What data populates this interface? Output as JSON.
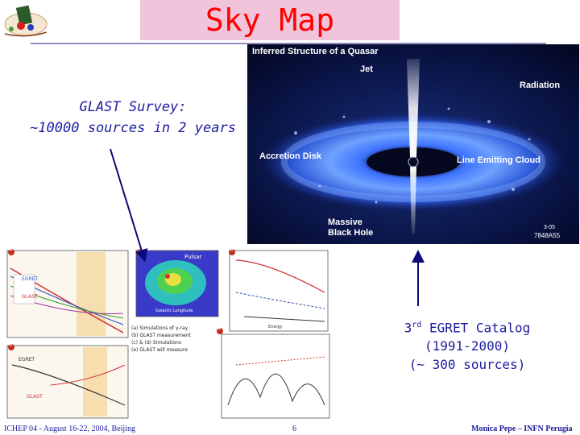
{
  "slide": {
    "title": "Sky Map",
    "survey_line1": "GLAST Survey:",
    "survey_line2": "~10000 sources in 2 years",
    "catalog_ordinal": "3",
    "catalog_sup": "rd",
    "catalog_name": " EGRET Catalog",
    "catalog_years": "(1991-2000)",
    "catalog_count": "(~ 300 sources)"
  },
  "quasar_figure": {
    "title": "Inferred Structure of a Quasar",
    "labels": {
      "jet": "Jet",
      "radiation": "Radiation",
      "accretion_disk": "Accretion Disk",
      "line_emitting_cloud": "Line Emitting Cloud",
      "massive": "Massive",
      "black_hole": "Black Hole",
      "code_line1": "3-05",
      "code_line2": "7848A55"
    }
  },
  "science_panels": {
    "panel_letters": [
      "a",
      "c",
      "d",
      "b",
      "e"
    ],
    "labels": {
      "egret": "EGRET",
      "glast": "GLAST",
      "pulsar": "Pulsar",
      "energy": "Energy",
      "galactic_longitude": "Galactic Longitude",
      "egret_b": "EGRET",
      "glast_b": "GLAST"
    },
    "caption_lines": [
      "(a) Simulations of γ-ray",
      "(b) GLAST measurement",
      "(c) & (d) Simulations",
      "(e) GLAST will measure"
    ]
  },
  "footer": {
    "left": "ICHEP 04 - August 16-22, 2004, Beijing",
    "page": "6",
    "right": "Monica Pepe – INFN Perugia"
  },
  "colors": {
    "title": "#ff0000",
    "title_bg": "#f2c4dc",
    "text_blue": "#1b1b9e",
    "rule": "#8e8ec0"
  }
}
